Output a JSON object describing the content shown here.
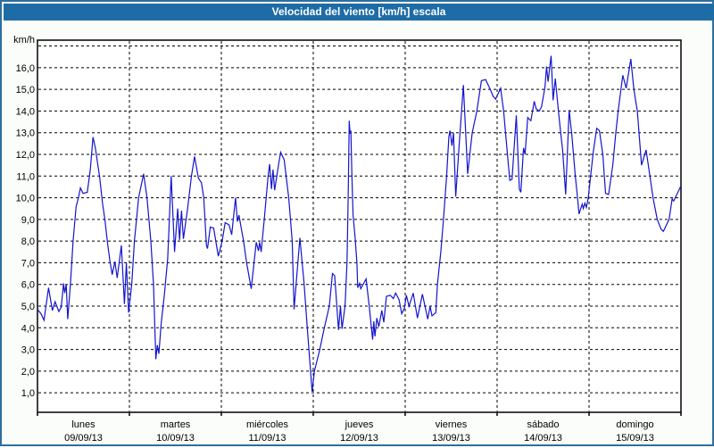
{
  "window": {
    "title": "Velocidad del viento [km/h] escala"
  },
  "colors": {
    "titlebar_bg": "#1e6ca6",
    "titlebar_text": "#ffffff",
    "frame_border": "#2e6e9e",
    "page_bg": "#fbfdfa",
    "plot_bg": "#ffffff",
    "plot_border": "#000000",
    "grid": "#000000",
    "series_line": "#1414cd",
    "label_text": "#000000"
  },
  "chart_data": {
    "type": "line",
    "title": "Velocidad del viento [km/h] escala",
    "ylabel": "km/h",
    "xlabel": "",
    "ylim": [
      0.1,
      17.27
    ],
    "y_grid_values": [
      1,
      2,
      3,
      4,
      5,
      6,
      7,
      8,
      9,
      10,
      11,
      12,
      13,
      14,
      15,
      16,
      17
    ],
    "y_tick_labels": [
      "1,0",
      "2,0",
      "3,0",
      "4,0",
      "5,0",
      "6,0",
      "7,0",
      "8,0",
      "9,0",
      "10,0",
      "11,0",
      "12,0",
      "13,0",
      "14,0",
      "15,0",
      "16,0"
    ],
    "grid": "dashed",
    "legend_position": "none",
    "x_axis": {
      "unit": "hours",
      "range_hours": [
        0,
        168
      ],
      "hours_per_day": 24,
      "day_labels": [
        {
          "name": "lunes",
          "date": "09/09/13"
        },
        {
          "name": "martes",
          "date": "10/09/13"
        },
        {
          "name": "miércoles",
          "date": "11/09/13"
        },
        {
          "name": "jueves",
          "date": "12/09/13"
        },
        {
          "name": "viernes",
          "date": "13/09/13"
        },
        {
          "name": "sábado",
          "date": "14/09/13"
        },
        {
          "name": "domingo",
          "date": "15/09/13"
        }
      ]
    },
    "series": [
      {
        "name": "Velocidad del viento [km/h]",
        "color": "#1414cd",
        "points": [
          [
            0,
            4.85
          ],
          [
            0.9,
            4.65
          ],
          [
            1.7,
            4.35
          ],
          [
            2.9,
            5.85
          ],
          [
            3.9,
            4.8
          ],
          [
            4.6,
            5.2
          ],
          [
            5.6,
            4.75
          ],
          [
            6.2,
            4.95
          ],
          [
            6.8,
            6.05
          ],
          [
            7.1,
            5.6
          ],
          [
            7.5,
            6.0
          ],
          [
            7.9,
            4.4
          ],
          [
            8.6,
            6.0
          ],
          [
            9.3,
            8.0
          ],
          [
            10.1,
            9.6
          ],
          [
            10.7,
            10.0
          ],
          [
            11.2,
            10.45
          ],
          [
            11.9,
            10.2
          ],
          [
            13.0,
            10.25
          ],
          [
            13.8,
            11.3
          ],
          [
            14.5,
            12.8
          ],
          [
            15.1,
            12.3
          ],
          [
            16.2,
            11.0
          ],
          [
            17.0,
            9.7
          ],
          [
            17.6,
            9.0
          ],
          [
            18.3,
            7.9
          ],
          [
            18.9,
            7.1
          ],
          [
            19.5,
            6.45
          ],
          [
            20.2,
            7.05
          ],
          [
            20.8,
            6.3
          ],
          [
            21.9,
            7.8
          ],
          [
            22.7,
            5.1
          ],
          [
            23.2,
            7.0
          ],
          [
            23.8,
            4.7
          ],
          [
            24.6,
            6.0
          ],
          [
            25.3,
            8.0
          ],
          [
            26.4,
            10.0
          ],
          [
            27.7,
            11.1
          ],
          [
            28.6,
            10.0
          ],
          [
            29.6,
            8.0
          ],
          [
            30.3,
            6.0
          ],
          [
            30.9,
            2.55
          ],
          [
            31.3,
            3.2
          ],
          [
            31.7,
            2.8
          ],
          [
            32.3,
            4.2
          ],
          [
            33.1,
            5.5
          ],
          [
            34.0,
            7.2
          ],
          [
            34.9,
            11.0
          ],
          [
            35.8,
            7.5
          ],
          [
            36.6,
            9.5
          ],
          [
            37.1,
            8.05
          ],
          [
            37.6,
            9.4
          ],
          [
            38.1,
            8.1
          ],
          [
            39.2,
            9.5
          ],
          [
            40.2,
            11.0
          ],
          [
            41.0,
            11.9
          ],
          [
            42.0,
            10.9
          ],
          [
            42.8,
            10.7
          ],
          [
            43.4,
            10.0
          ],
          [
            44.1,
            7.8
          ],
          [
            44.4,
            7.65
          ],
          [
            45.1,
            8.65
          ],
          [
            46.0,
            8.6
          ],
          [
            47.2,
            7.3
          ],
          [
            48.2,
            8.0
          ],
          [
            49.0,
            8.85
          ],
          [
            50.0,
            8.75
          ],
          [
            50.7,
            8.3
          ],
          [
            51.7,
            10.0
          ],
          [
            52.2,
            8.9
          ],
          [
            52.6,
            9.2
          ],
          [
            53.8,
            8.0
          ],
          [
            54.6,
            7.0
          ],
          [
            55.8,
            5.8
          ],
          [
            57.1,
            7.95
          ],
          [
            57.7,
            7.55
          ],
          [
            58.0,
            7.95
          ],
          [
            58.4,
            7.5
          ],
          [
            59.2,
            9.0
          ],
          [
            60.2,
            11.0
          ],
          [
            60.6,
            11.55
          ],
          [
            61.1,
            10.4
          ],
          [
            61.5,
            11.3
          ],
          [
            61.9,
            10.35
          ],
          [
            63.0,
            11.6
          ],
          [
            63.5,
            12.1
          ],
          [
            64.4,
            11.75
          ],
          [
            65.6,
            10.0
          ],
          [
            66.5,
            8.0
          ],
          [
            67.0,
            4.85
          ],
          [
            68.5,
            8.15
          ],
          [
            69.6,
            6.05
          ],
          [
            70.4,
            4.1
          ],
          [
            71.7,
            1.05
          ],
          [
            72.3,
            2.0
          ],
          [
            73.7,
            3.0
          ],
          [
            74.9,
            4.0
          ],
          [
            76.2,
            5.0
          ],
          [
            77.0,
            6.5
          ],
          [
            77.6,
            6.4
          ],
          [
            78.6,
            3.9
          ],
          [
            79.1,
            5.0
          ],
          [
            79.5,
            3.95
          ],
          [
            80.3,
            5.0
          ],
          [
            80.8,
            7.0
          ],
          [
            81.1,
            10.0
          ],
          [
            81.4,
            13.55
          ],
          [
            81.6,
            12.95
          ],
          [
            81.8,
            13.1
          ],
          [
            82.1,
            11.0
          ],
          [
            82.4,
            9.2
          ],
          [
            82.9,
            8.2
          ],
          [
            83.4,
            7.0
          ],
          [
            83.6,
            5.85
          ],
          [
            84.1,
            6.05
          ],
          [
            84.4,
            5.8
          ],
          [
            85.8,
            6.25
          ],
          [
            86.6,
            5.0
          ],
          [
            87.5,
            3.45
          ],
          [
            87.8,
            4.3
          ],
          [
            88.1,
            3.6
          ],
          [
            88.6,
            4.45
          ],
          [
            89.1,
            4.05
          ],
          [
            89.9,
            4.8
          ],
          [
            90.4,
            4.25
          ],
          [
            91.1,
            5.45
          ],
          [
            92.1,
            5.5
          ],
          [
            92.9,
            5.35
          ],
          [
            93.5,
            5.6
          ],
          [
            94.4,
            5.3
          ],
          [
            95.1,
            4.65
          ],
          [
            95.8,
            4.9
          ],
          [
            96.3,
            5.5
          ],
          [
            97.0,
            5.0
          ],
          [
            98.1,
            5.6
          ],
          [
            99.2,
            4.45
          ],
          [
            100.5,
            5.55
          ],
          [
            101.9,
            4.4
          ],
          [
            102.5,
            5.0
          ],
          [
            103.0,
            4.55
          ],
          [
            104.0,
            4.7
          ],
          [
            104.4,
            6.0
          ],
          [
            105.3,
            7.5
          ],
          [
            106.0,
            9.0
          ],
          [
            106.8,
            11.0
          ],
          [
            107.4,
            12.8
          ],
          [
            107.7,
            13.1
          ],
          [
            108.2,
            12.4
          ],
          [
            108.6,
            13.0
          ],
          [
            109.2,
            10.05
          ],
          [
            110.1,
            12.45
          ],
          [
            111.2,
            15.2
          ],
          [
            112.3,
            11.1
          ],
          [
            113.5,
            13.0
          ],
          [
            114.7,
            14.0
          ],
          [
            115.9,
            15.4
          ],
          [
            117.0,
            15.45
          ],
          [
            118.2,
            15.0
          ],
          [
            118.9,
            14.7
          ],
          [
            119.6,
            14.55
          ],
          [
            120.9,
            15.05
          ],
          [
            121.7,
            14.0
          ],
          [
            122.2,
            13.0
          ],
          [
            123.3,
            10.8
          ],
          [
            123.9,
            10.85
          ],
          [
            125.0,
            13.8
          ],
          [
            125.8,
            10.4
          ],
          [
            126.2,
            10.25
          ],
          [
            126.9,
            12.3
          ],
          [
            127.3,
            12.0
          ],
          [
            128.0,
            13.7
          ],
          [
            128.8,
            13.55
          ],
          [
            129.7,
            14.45
          ],
          [
            130.2,
            14.1
          ],
          [
            131.0,
            14.0
          ],
          [
            131.6,
            14.2
          ],
          [
            132.5,
            15.1
          ],
          [
            132.9,
            16.05
          ],
          [
            133.3,
            15.35
          ],
          [
            134.1,
            16.55
          ],
          [
            134.6,
            14.5
          ],
          [
            135.2,
            15.5
          ],
          [
            136.0,
            14.0
          ],
          [
            136.6,
            13.0
          ],
          [
            137.1,
            12.2
          ],
          [
            137.9,
            10.15
          ],
          [
            138.8,
            14.05
          ],
          [
            139.5,
            12.9
          ],
          [
            140.4,
            11.0
          ],
          [
            141.0,
            10.0
          ],
          [
            141.4,
            9.25
          ],
          [
            142.2,
            9.7
          ],
          [
            142.5,
            9.5
          ],
          [
            142.9,
            9.75
          ],
          [
            143.3,
            9.55
          ],
          [
            143.8,
            10.0
          ],
          [
            145.1,
            12.1
          ],
          [
            146.0,
            13.2
          ],
          [
            146.7,
            13.1
          ],
          [
            147.6,
            12.0
          ],
          [
            148.3,
            10.2
          ],
          [
            149.1,
            10.15
          ],
          [
            150.2,
            11.5
          ],
          [
            151.0,
            13.0
          ],
          [
            151.6,
            14.0
          ],
          [
            152.8,
            15.65
          ],
          [
            153.7,
            15.05
          ],
          [
            154.9,
            16.4
          ],
          [
            155.7,
            15.0
          ],
          [
            156.6,
            14.0
          ],
          [
            157.7,
            11.5
          ],
          [
            158.9,
            12.2
          ],
          [
            159.9,
            11.0
          ],
          [
            160.7,
            10.0
          ],
          [
            161.8,
            9.0
          ],
          [
            162.8,
            8.55
          ],
          [
            163.4,
            8.45
          ],
          [
            164.9,
            9.0
          ],
          [
            165.7,
            9.95
          ],
          [
            166.1,
            9.85
          ],
          [
            168.0,
            10.55
          ]
        ]
      }
    ]
  }
}
